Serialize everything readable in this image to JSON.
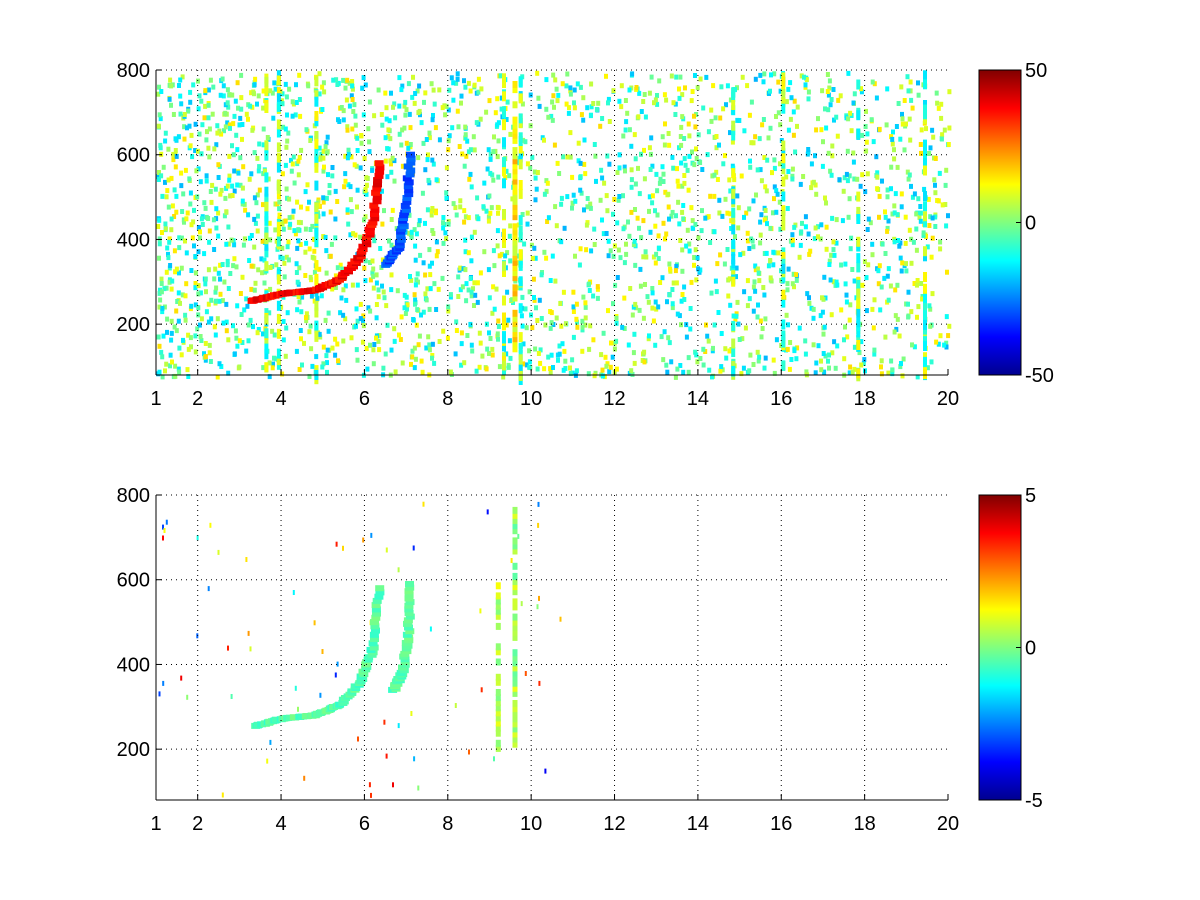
{
  "chart_data": [
    {
      "type": "heatmap",
      "title": "",
      "xlabel": "",
      "ylabel": "",
      "xlim": [
        1,
        20
      ],
      "ylim": [
        80,
        800
      ],
      "grid": true,
      "colormap": "jet",
      "x_ticks": [
        1,
        2,
        4,
        6,
        8,
        10,
        12,
        14,
        16,
        18,
        20
      ],
      "x_tick_labels": [
        "1",
        "2",
        "4",
        "6",
        "8",
        "10",
        "12",
        "14",
        "16",
        "18",
        "20"
      ],
      "y_ticks": [
        200,
        400,
        600,
        800
      ],
      "y_tick_labels": [
        "200",
        "400",
        "600",
        "800"
      ],
      "colorbar": {
        "range": [
          -50,
          50
        ],
        "ticks": [
          -50,
          0,
          50
        ],
        "tick_labels": [
          "-50",
          "0",
          "50"
        ]
      },
      "features": [
        {
          "shape": "curve",
          "points": [
            [
              3.3,
              255
            ],
            [
              4.0,
              272
            ],
            [
              4.8,
              280
            ],
            [
              5.4,
              305
            ],
            [
              5.9,
              360
            ],
            [
              6.2,
              440
            ],
            [
              6.35,
              580
            ]
          ],
          "value": 38
        },
        {
          "shape": "curve",
          "points": [
            [
              6.5,
              340
            ],
            [
              6.8,
              380
            ],
            [
              7.0,
              470
            ],
            [
              7.1,
              600
            ]
          ],
          "value": -30
        },
        {
          "shape": "column",
          "x": 9.6,
          "y_range": [
            150,
            790
          ],
          "value": 14
        }
      ],
      "background": "sparse scattered noise, values mostly between -20 and 15"
    },
    {
      "type": "heatmap",
      "title": "",
      "xlabel": "",
      "ylabel": "",
      "xlim": [
        1,
        20
      ],
      "ylim": [
        80,
        800
      ],
      "grid": true,
      "colormap": "jet",
      "x_ticks": [
        1,
        2,
        4,
        6,
        8,
        10,
        12,
        14,
        16,
        18,
        20
      ],
      "x_tick_labels": [
        "1",
        "2",
        "4",
        "6",
        "8",
        "10",
        "12",
        "14",
        "16",
        "18",
        "20"
      ],
      "y_ticks": [
        200,
        400,
        600,
        800
      ],
      "y_tick_labels": [
        "200",
        "400",
        "600",
        "800"
      ],
      "colorbar": {
        "range": [
          -5,
          5
        ],
        "ticks": [
          -5,
          0,
          5
        ],
        "tick_labels": [
          "-5",
          "0",
          "5"
        ]
      },
      "features": [
        {
          "shape": "curve",
          "points": [
            [
              3.4,
              255
            ],
            [
              4.0,
              272
            ],
            [
              4.8,
              280
            ],
            [
              5.4,
              305
            ],
            [
              5.9,
              360
            ],
            [
              6.2,
              440
            ],
            [
              6.35,
              580
            ]
          ],
          "value": -0.4
        },
        {
          "shape": "curve",
          "points": [
            [
              6.7,
              340
            ],
            [
              6.9,
              380
            ],
            [
              7.05,
              470
            ],
            [
              7.1,
              590
            ]
          ],
          "value": -0.4
        },
        {
          "shape": "column",
          "x": 9.6,
          "y_range": [
            220,
            790
          ],
          "value": 0.3
        },
        {
          "shape": "column",
          "x": 9.2,
          "y_range": [
            210,
            600
          ],
          "value": 0.5
        }
      ],
      "background": "mostly empty with isolated sparse points"
    }
  ]
}
